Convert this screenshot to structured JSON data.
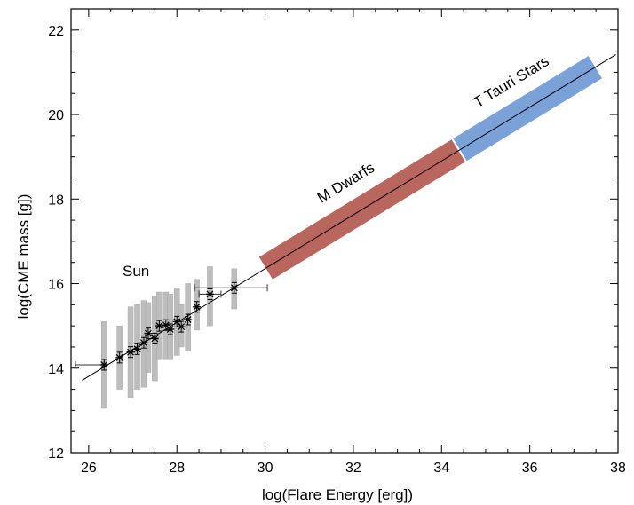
{
  "chart_data": {
    "type": "scatter",
    "xlabel": "log(Flare Energy [erg])",
    "ylabel": "log(CME mass [g])",
    "xlim": [
      25.6,
      38
    ],
    "ylim": [
      12,
      22.5
    ],
    "xticks": [
      "26",
      "28",
      "30",
      "32",
      "34",
      "36",
      "38"
    ],
    "yticks": [
      "12",
      "14",
      "16",
      "18",
      "20",
      "22"
    ],
    "grid": false,
    "fit_line": {
      "x": [
        25.6,
        38.0
      ],
      "y": [
        13.55,
        21.45
      ]
    },
    "bands": [
      {
        "label": "M Dwarfs",
        "x_start": 30.0,
        "x_end": 34.4,
        "half_width": 0.33,
        "color": "#b9675e"
      },
      {
        "label": "T Tauri Stars",
        "x_start": 34.4,
        "x_end": 37.5,
        "half_width": 0.33,
        "color": "#7aa2d8"
      }
    ],
    "sun_label": "Sun",
    "sun_points": [
      {
        "x": 26.35,
        "y": 14.08,
        "range": [
          13.05,
          15.1
        ],
        "xerr": [
          25.7,
          26.35
        ]
      },
      {
        "x": 26.7,
        "y": 14.25,
        "range": [
          13.5,
          15.0
        ]
      },
      {
        "x": 26.95,
        "y": 14.38,
        "range": [
          13.3,
          15.45
        ]
      },
      {
        "x": 27.1,
        "y": 14.45,
        "range": [
          13.5,
          15.5
        ]
      },
      {
        "x": 27.25,
        "y": 14.6,
        "range": [
          13.55,
          15.6
        ]
      },
      {
        "x": 27.35,
        "y": 14.82,
        "range": [
          13.9,
          15.55
        ]
      },
      {
        "x": 27.5,
        "y": 14.7,
        "range": [
          13.7,
          15.7
        ]
      },
      {
        "x": 27.6,
        "y": 15.0,
        "range": [
          14.2,
          15.8
        ]
      },
      {
        "x": 27.75,
        "y": 15.02,
        "range": [
          14.2,
          15.8
        ]
      },
      {
        "x": 27.85,
        "y": 14.92,
        "range": [
          14.2,
          15.75
        ]
      },
      {
        "x": 28.0,
        "y": 15.1,
        "range": [
          14.3,
          15.9
        ]
      },
      {
        "x": 28.1,
        "y": 14.98,
        "range": [
          14.5,
          15.5
        ]
      },
      {
        "x": 28.25,
        "y": 15.15,
        "range": [
          14.4,
          16.0
        ]
      },
      {
        "x": 28.45,
        "y": 15.45,
        "range": [
          14.9,
          16.1
        ]
      },
      {
        "x": 28.75,
        "y": 15.75,
        "range": [
          15.0,
          16.4
        ],
        "xerr": [
          28.5,
          29.0
        ]
      },
      {
        "x": 29.3,
        "y": 15.9,
        "range": [
          15.4,
          16.35
        ],
        "xerr": [
          28.4,
          30.05
        ]
      }
    ]
  }
}
